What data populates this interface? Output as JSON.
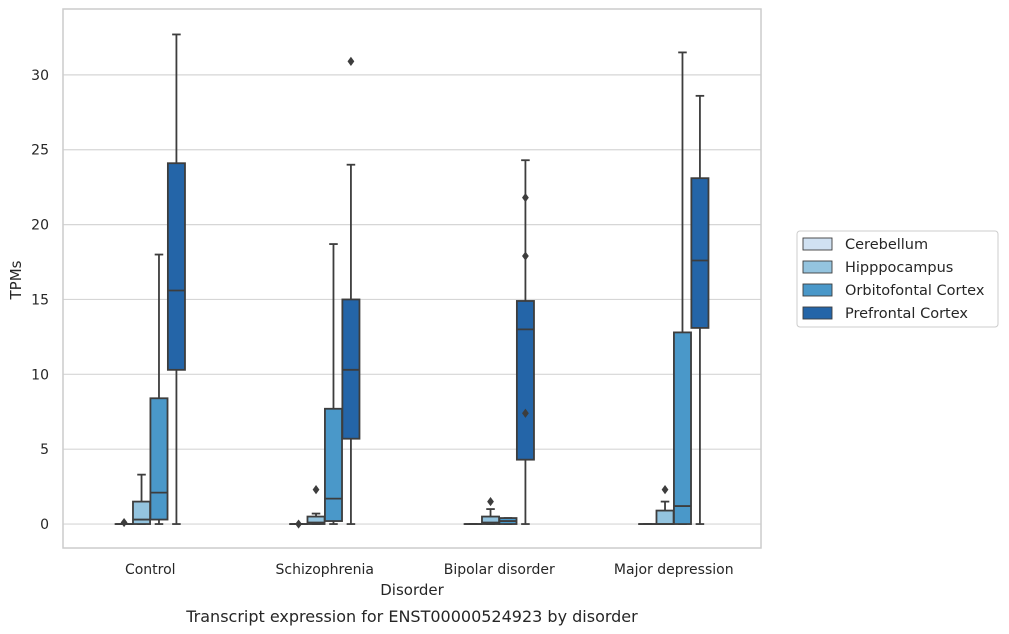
{
  "caption": "Transcript expression for ENST00000524923 by disorder",
  "chart_data": {
    "type": "boxplot",
    "xlabel": "Disorder",
    "ylabel": "TPMs",
    "ylim": [
      -1.6,
      34.4
    ],
    "yticks": [
      0,
      5,
      10,
      15,
      20,
      25,
      30
    ],
    "grid": "horizontal",
    "legend_position": "right",
    "categories": [
      "Control",
      "Schizophrenia",
      "Bipolar disorder",
      "Major depression"
    ],
    "series": [
      {
        "name": "Cerebellum",
        "color": "#d0e1f2",
        "boxes": [
          {
            "q1": 0,
            "median": 0,
            "q3": 0,
            "whisker_low": 0,
            "whisker_high": 0,
            "outliers": [
              0.1
            ]
          },
          {
            "q1": 0,
            "median": 0,
            "q3": 0,
            "whisker_low": 0,
            "whisker_high": 0,
            "outliers": [
              0.0
            ]
          },
          {
            "q1": 0,
            "median": 0,
            "q3": 0,
            "whisker_low": 0,
            "whisker_high": 0,
            "outliers": []
          },
          {
            "q1": 0,
            "median": 0,
            "q3": 0,
            "whisker_low": 0,
            "whisker_high": 0,
            "outliers": []
          }
        ]
      },
      {
        "name": "Hipppocampus",
        "color": "#94c4df",
        "boxes": [
          {
            "q1": 0,
            "median": 0.3,
            "q3": 1.5,
            "whisker_low": 0,
            "whisker_high": 3.3,
            "outliers": []
          },
          {
            "q1": 0,
            "median": 0.1,
            "q3": 0.5,
            "whisker_low": 0,
            "whisker_high": 0.7,
            "outliers": [
              2.3
            ]
          },
          {
            "q1": 0,
            "median": 0.1,
            "q3": 0.5,
            "whisker_low": 0,
            "whisker_high": 1.0,
            "outliers": [
              1.5
            ]
          },
          {
            "q1": 0,
            "median": 0.0,
            "q3": 0.9,
            "whisker_low": 0,
            "whisker_high": 1.5,
            "outliers": [
              2.3
            ]
          }
        ]
      },
      {
        "name": "Orbitofontal Cortex",
        "color": "#4a98c9",
        "boxes": [
          {
            "q1": 0.3,
            "median": 2.1,
            "q3": 8.4,
            "whisker_low": 0,
            "whisker_high": 18.0,
            "outliers": []
          },
          {
            "q1": 0.2,
            "median": 1.7,
            "q3": 7.7,
            "whisker_low": 0,
            "whisker_high": 18.7,
            "outliers": []
          },
          {
            "q1": 0,
            "median": 0.2,
            "q3": 0.4,
            "whisker_low": 0,
            "whisker_high": 0.4,
            "outliers": []
          },
          {
            "q1": 0,
            "median": 1.2,
            "q3": 12.8,
            "whisker_low": 0,
            "whisker_high": 31.5,
            "outliers": []
          }
        ]
      },
      {
        "name": "Prefrontal Cortex",
        "color": "#2465a8",
        "boxes": [
          {
            "q1": 10.3,
            "median": 15.6,
            "q3": 24.1,
            "whisker_low": 0,
            "whisker_high": 32.7,
            "outliers": []
          },
          {
            "q1": 5.7,
            "median": 10.3,
            "q3": 15.0,
            "whisker_low": 0,
            "whisker_high": 24.0,
            "outliers": [
              30.9
            ]
          },
          {
            "q1": 4.3,
            "median": 13.0,
            "q3": 14.9,
            "whisker_low": 0,
            "whisker_high": 24.3,
            "outliers": [
              21.8,
              17.9,
              7.4
            ]
          },
          {
            "q1": 13.1,
            "median": 17.6,
            "q3": 23.1,
            "whisker_low": 0,
            "whisker_high": 28.6,
            "outliers": []
          }
        ]
      }
    ]
  }
}
